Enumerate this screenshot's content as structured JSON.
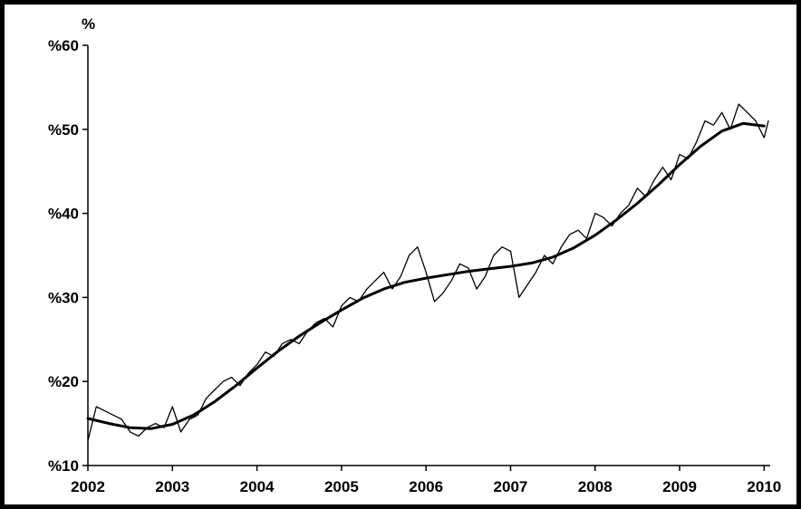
{
  "chart_data": {
    "type": "line",
    "ylabel": "%",
    "xlim": [
      2002,
      2010.05
    ],
    "ylim": [
      10,
      60
    ],
    "x_ticks": [
      2002,
      2003,
      2004,
      2005,
      2006,
      2007,
      2008,
      2009,
      2010
    ],
    "x_tick_labels": [
      "2002",
      "2003",
      "2004",
      "2005",
      "2006",
      "2007",
      "2008",
      "2009",
      "2010"
    ],
    "y_ticks": [
      10,
      20,
      30,
      40,
      50,
      60
    ],
    "y_tick_labels": [
      "%10",
      "%20",
      "%30",
      "%40",
      "%50",
      "%60"
    ],
    "grid": false,
    "series": [
      {
        "kind": "raw",
        "x": [
          2002.0,
          2002.1,
          2002.2,
          2002.3,
          2002.4,
          2002.5,
          2002.6,
          2002.7,
          2002.8,
          2002.9,
          2003.0,
          2003.1,
          2003.2,
          2003.3,
          2003.4,
          2003.5,
          2003.6,
          2003.7,
          2003.8,
          2003.9,
          2004.0,
          2004.1,
          2004.2,
          2004.3,
          2004.4,
          2004.5,
          2004.6,
          2004.7,
          2004.8,
          2004.9,
          2005.0,
          2005.1,
          2005.2,
          2005.3,
          2005.4,
          2005.5,
          2005.6,
          2005.7,
          2005.8,
          2005.9,
          2006.0,
          2006.1,
          2006.2,
          2006.3,
          2006.4,
          2006.5,
          2006.6,
          2006.7,
          2006.8,
          2006.9,
          2007.0,
          2007.1,
          2007.2,
          2007.3,
          2007.4,
          2007.5,
          2007.6,
          2007.7,
          2007.8,
          2007.9,
          2008.0,
          2008.1,
          2008.2,
          2008.3,
          2008.4,
          2008.5,
          2008.6,
          2008.7,
          2008.8,
          2008.9,
          2009.0,
          2009.1,
          2009.2,
          2009.3,
          2009.4,
          2009.5,
          2009.6,
          2009.7,
          2009.8,
          2009.9,
          2010.0,
          2010.05
        ],
        "y": [
          13,
          17,
          16.5,
          16,
          15.5,
          14,
          13.5,
          14.5,
          15,
          14.5,
          17,
          14,
          15.5,
          16,
          18,
          19,
          20,
          20.5,
          19.5,
          21,
          22,
          23.5,
          23,
          24.5,
          25,
          24.5,
          26,
          27,
          27.5,
          26.5,
          29,
          30,
          29.5,
          31,
          32,
          33,
          31,
          32.5,
          35,
          36,
          33,
          29.5,
          30.5,
          32,
          34,
          33.5,
          31,
          32.5,
          35,
          36,
          35.5,
          30,
          31.5,
          33,
          35,
          34,
          36,
          37.5,
          38,
          37,
          40,
          39.5,
          38.5,
          40,
          41,
          43,
          42,
          44,
          45.5,
          44,
          47,
          46.5,
          48.5,
          51,
          50.5,
          52,
          50,
          53,
          52,
          51,
          49,
          51
        ]
      },
      {
        "kind": "trend",
        "x": [
          2002.0,
          2002.25,
          2002.5,
          2002.75,
          2003.0,
          2003.25,
          2003.5,
          2003.75,
          2004.0,
          2004.25,
          2004.5,
          2004.75,
          2005.0,
          2005.25,
          2005.5,
          2005.75,
          2006.0,
          2006.25,
          2006.5,
          2006.75,
          2007.0,
          2007.25,
          2007.5,
          2007.75,
          2008.0,
          2008.25,
          2008.5,
          2008.75,
          2009.0,
          2009.25,
          2009.5,
          2009.75,
          2010.0
        ],
        "y": [
          15.6,
          15.0,
          14.5,
          14.4,
          14.9,
          16.0,
          17.6,
          19.5,
          21.6,
          23.6,
          25.4,
          27.0,
          28.5,
          29.9,
          31.0,
          31.8,
          32.3,
          32.7,
          33.1,
          33.4,
          33.7,
          34.1,
          34.8,
          35.9,
          37.4,
          39.2,
          41.2,
          43.4,
          45.8,
          48.0,
          49.8,
          50.7,
          50.4
        ]
      }
    ]
  }
}
